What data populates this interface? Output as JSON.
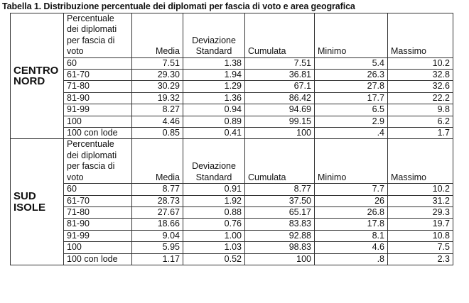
{
  "caption": "Tabella 1. Distribuzione percentuale dei diplomati per fascia di voto e area geografica",
  "columns": {
    "fascia": [
      "Percentuale",
      "dei diplomati",
      "per fascia di",
      "voto"
    ],
    "media": "Media",
    "deviazione": [
      "Deviazione",
      "Standard"
    ],
    "cumulata": "Cumulata",
    "minimo": "Minimo",
    "massimo": "Massimo"
  },
  "sections": [
    {
      "area": [
        "CENTRO",
        "NORD"
      ],
      "rows": [
        {
          "fascia": "60",
          "media": "7.51",
          "dev": "1.38",
          "cum": "7.51",
          "min": "5.4",
          "max": "10.2"
        },
        {
          "fascia": "61-70",
          "media": "29.30",
          "dev": "1.94",
          "cum": "36.81",
          "min": "26.3",
          "max": "32.8"
        },
        {
          "fascia": "71-80",
          "media": "30.29",
          "dev": "1.29",
          "cum": "67.1",
          "min": "27.8",
          "max": "32.6"
        },
        {
          "fascia": "81-90",
          "media": "19.32",
          "dev": "1.36",
          "cum": "86.42",
          "min": "17.7",
          "max": "22.2"
        },
        {
          "fascia": "91-99",
          "media": "8.27",
          "dev": "0.94",
          "cum": "94.69",
          "min": "6.5",
          "max": "9.8"
        },
        {
          "fascia": "100",
          "media": "4.46",
          "dev": "0.89",
          "cum": "99.15",
          "min": "2.9",
          "max": "6.2"
        },
        {
          "fascia": "100 con lode",
          "media": "0.85",
          "dev": "0.41",
          "cum": "100",
          "min": ".4",
          "max": "1.7"
        }
      ]
    },
    {
      "area": [
        "SUD",
        "ISOLE"
      ],
      "rows": [
        {
          "fascia": "60",
          "media": "8.77",
          "dev": "0.91",
          "cum": "8.77",
          "min": "7.7",
          "max": "10.2"
        },
        {
          "fascia": "61-70",
          "media": "28.73",
          "dev": "1.92",
          "cum": "37.50",
          "min": "26",
          "max": "31.2"
        },
        {
          "fascia": "71-80",
          "media": "27.67",
          "dev": "0.88",
          "cum": "65.17",
          "min": "26.8",
          "max": "29.3"
        },
        {
          "fascia": "81-90",
          "media": "18.66",
          "dev": "0.76",
          "cum": "83.83",
          "min": "17.8",
          "max": "19.7"
        },
        {
          "fascia": "91-99",
          "media": "9.04",
          "dev": "1.00",
          "cum": "92.88",
          "min": "8.1",
          "max": "10.8"
        },
        {
          "fascia": "100",
          "media": "5.95",
          "dev": "1.03",
          "cum": "98.83",
          "min": "4.6",
          "max": "7.5"
        },
        {
          "fascia": "100 con lode",
          "media": "1.17",
          "dev": "0.52",
          "cum": "100",
          "min": ".8",
          "max": "2.3"
        }
      ]
    }
  ]
}
